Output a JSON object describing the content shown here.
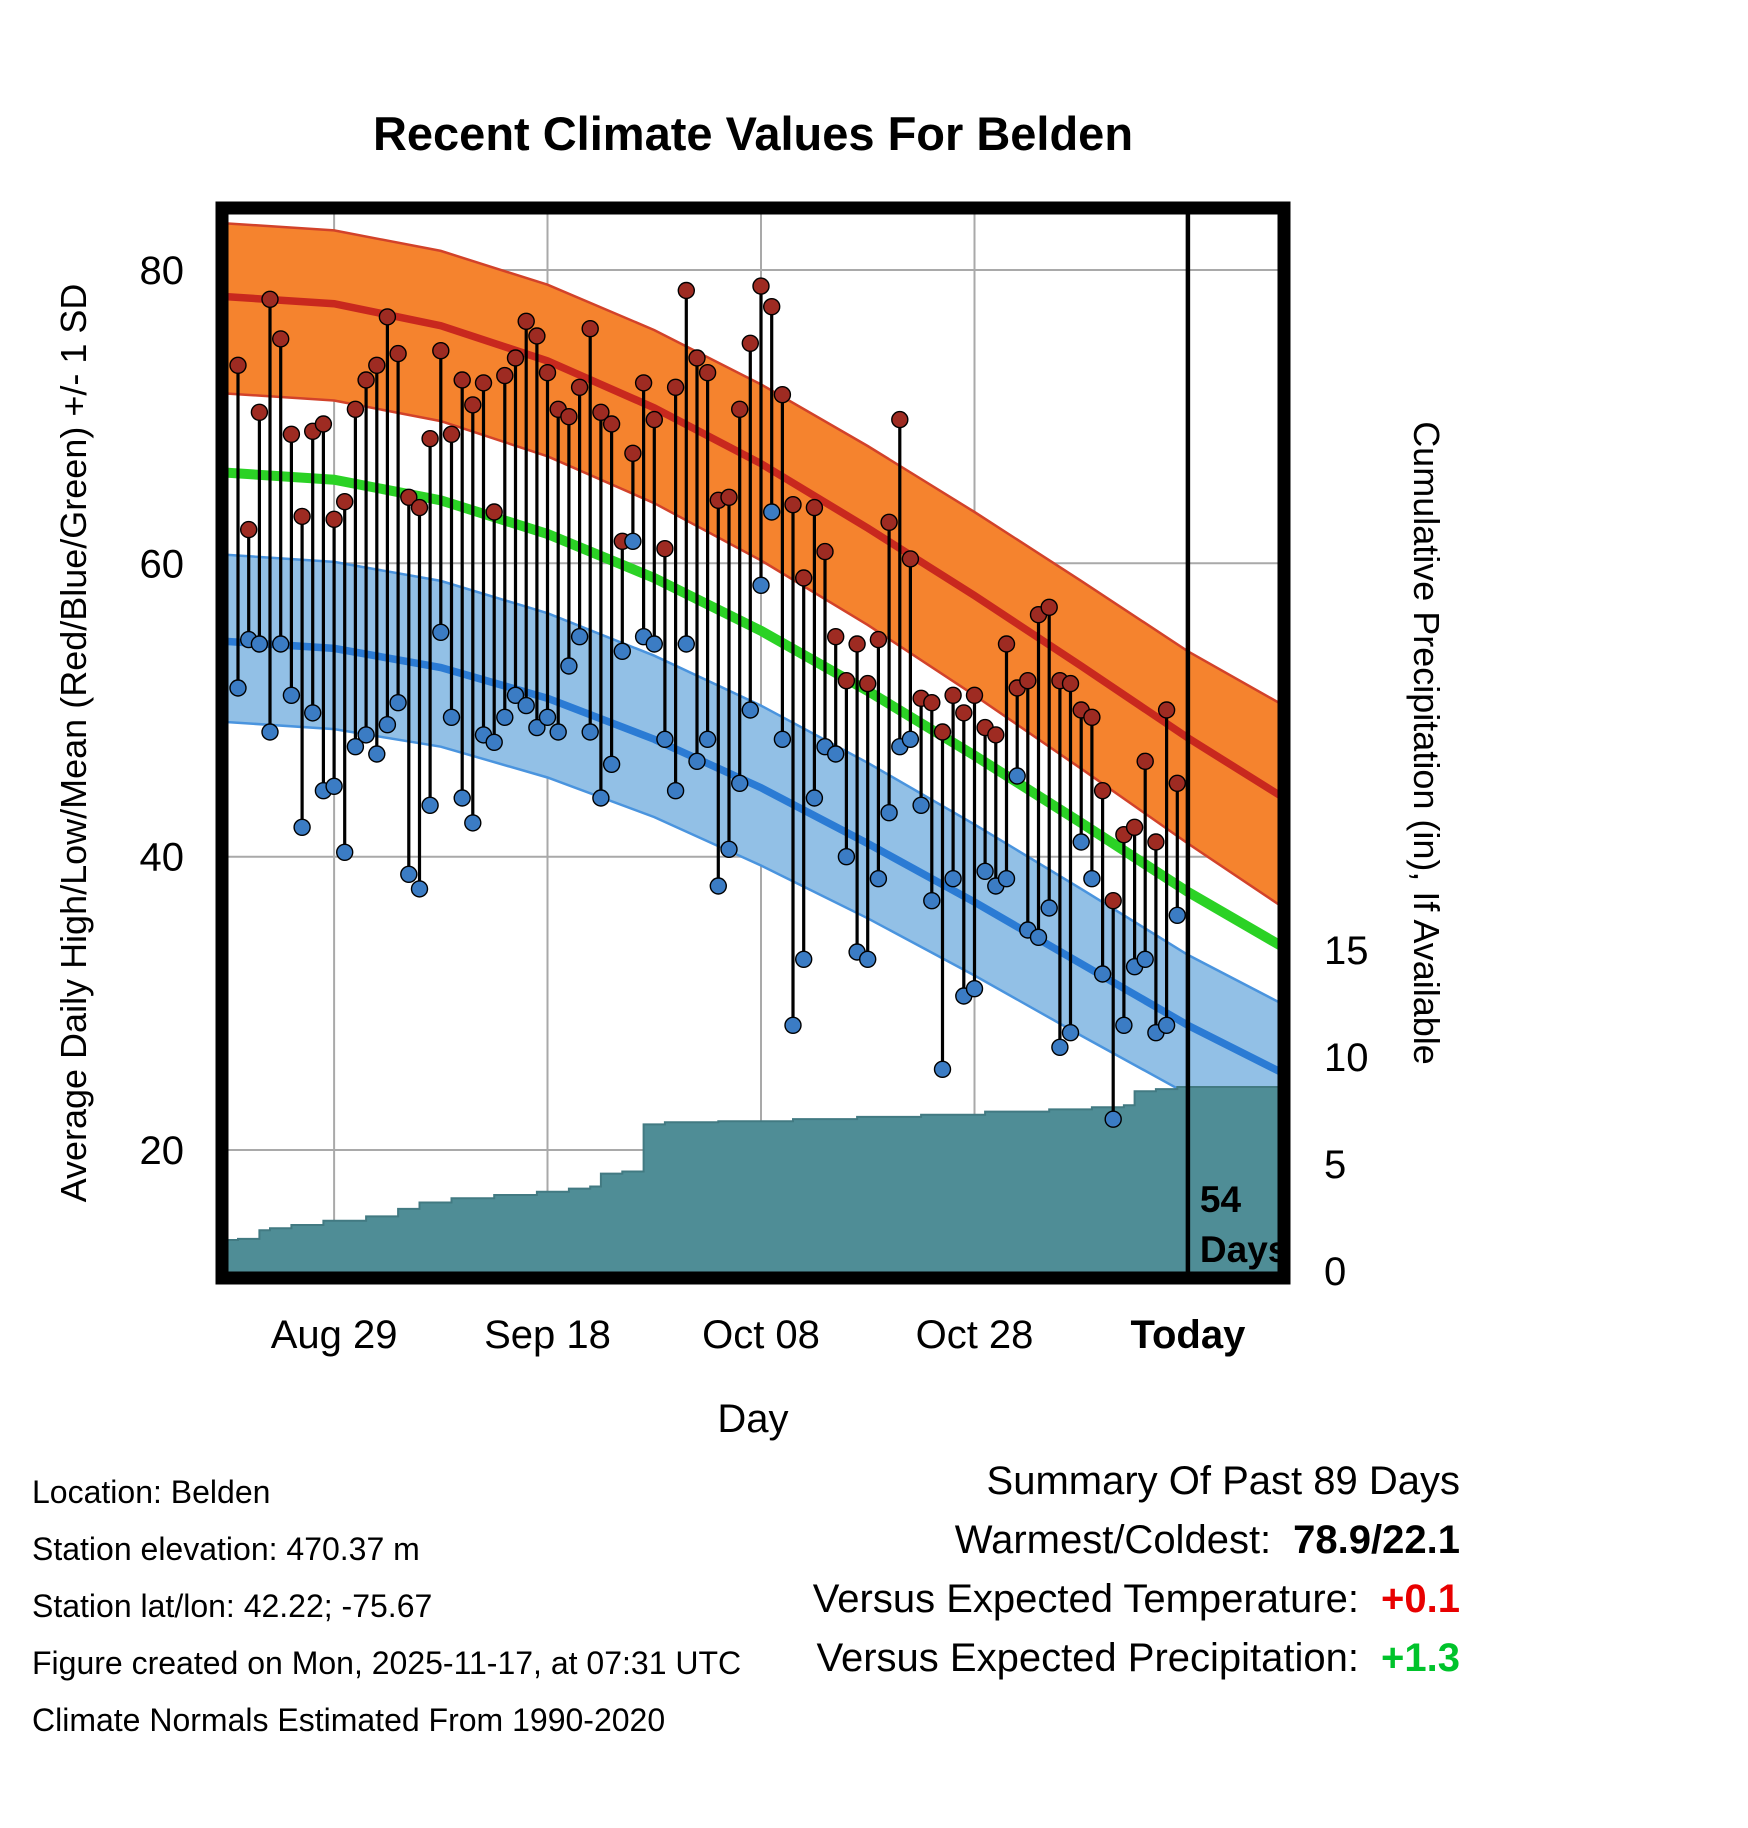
{
  "title": "Recent Climate Values For Belden",
  "x_axis": {
    "label": "Day",
    "ticks": [
      {
        "day": 9,
        "label": "Aug 29",
        "bold": false
      },
      {
        "day": 29,
        "label": "Sep 18",
        "bold": false
      },
      {
        "day": 49,
        "label": "Oct 08",
        "bold": false
      },
      {
        "day": 69,
        "label": "Oct 28",
        "bold": false
      },
      {
        "day": 89,
        "label": "Today",
        "bold": true
      }
    ]
  },
  "y_left": {
    "label": "Average Daily High/Low/Mean (Red/Blue/Green) +/- 1 SD",
    "ticks": [
      20,
      40,
      60,
      80
    ]
  },
  "y_right": {
    "label": "Cumulative Precipitation (in), If Available",
    "ticks": [
      0,
      5,
      10,
      15
    ]
  },
  "today_marker": {
    "day": 89,
    "label_line1": "54",
    "label_line2": "Days"
  },
  "footer": {
    "lines": [
      "Location: Belden",
      "Station elevation: 470.37 m",
      "Station lat/lon: 42.22; -75.67",
      "Figure created on Mon, 2025-11-17, at 07:31 UTC",
      "Climate Normals Estimated From 1990-2020"
    ]
  },
  "summary": {
    "title": "Summary Of Past 89 Days",
    "rows": [
      {
        "label": "Warmest/Coldest:",
        "value": "78.9/22.1",
        "value_color": "#000000"
      },
      {
        "label": "Versus Expected Temperature:",
        "value": "+0.1",
        "value_color": "#E80000"
      },
      {
        "label": "Versus Expected Precipitation:",
        "value": "+1.3",
        "value_color": "#00C32B"
      }
    ]
  },
  "colors": {
    "high_band": "#F5832E",
    "high_edge": "#D2422A",
    "high_line": "#C8281E",
    "high_dot": "#9E2B22",
    "low_band": "#92C0E6",
    "low_edge": "#4A94DE",
    "low_line": "#2B7BD4",
    "low_dot": "#3B7CC4",
    "mean_line": "#2BD225",
    "precip": "#4F8D96",
    "precip_edge": "#427A82",
    "grid": "#A9A9A9",
    "frame": "#000000"
  },
  "chart_data": {
    "type": "composite",
    "title": "Recent Climate Values For Belden",
    "xlabel": "Day",
    "ylabel_left": "Average Daily High/Low/Mean (Red/Blue/Green) +/- 1 SD",
    "ylabel_right": "Cumulative Precipitation (in), If Available",
    "temp_axis_ticks": [
      20,
      40,
      60,
      80
    ],
    "precip_axis_ticks": [
      0,
      5,
      10,
      15
    ],
    "x_domain_days": [
      -1.5,
      98
    ],
    "normals": {
      "days": [
        -1.5,
        9,
        19,
        29,
        39,
        49,
        59,
        69,
        79,
        89,
        98
      ],
      "high_upper": [
        83.2,
        82.7,
        81.3,
        79.0,
        75.9,
        72.2,
        68.0,
        63.5,
        58.8,
        54.0,
        50.3
      ],
      "high_mean": [
        78.2,
        77.7,
        76.2,
        73.8,
        70.6,
        66.8,
        62.4,
        57.8,
        53.0,
        48.1,
        44.0
      ],
      "high_lower": [
        71.6,
        71.1,
        69.7,
        67.3,
        64.1,
        60.2,
        55.8,
        51.0,
        46.0,
        40.9,
        36.5
      ],
      "mean": [
        66.2,
        65.7,
        64.3,
        62.0,
        59.0,
        55.4,
        51.3,
        46.9,
        42.3,
        37.6,
        33.8
      ],
      "low_upper": [
        60.6,
        60.1,
        58.8,
        56.6,
        53.7,
        50.3,
        46.4,
        42.2,
        37.8,
        33.3,
        29.9
      ],
      "low_mean": [
        54.7,
        54.2,
        52.9,
        50.8,
        48.0,
        44.7,
        40.9,
        36.9,
        32.7,
        28.5,
        25.2
      ],
      "low_lower": [
        49.2,
        48.7,
        47.5,
        45.4,
        42.7,
        39.4,
        35.8,
        31.9,
        27.8,
        23.8,
        20.8
      ]
    },
    "daily": {
      "start_day": 0,
      "highs": [
        73.5,
        62.3,
        70.3,
        78.0,
        75.3,
        68.8,
        63.2,
        69.0,
        69.5,
        63.0,
        64.2,
        70.5,
        72.5,
        73.5,
        76.8,
        74.3,
        64.5,
        63.8,
        68.5,
        74.5,
        68.8,
        72.5,
        70.8,
        72.3,
        63.5,
        72.8,
        74.0,
        76.5,
        75.5,
        73.0,
        70.5,
        70.0,
        72.0,
        76.0,
        70.3,
        69.5,
        61.5,
        67.5,
        72.3,
        69.8,
        61.0,
        72.0,
        78.6,
        74.0,
        73.0,
        64.3,
        64.5,
        70.5,
        75.0,
        78.9,
        77.5,
        71.5,
        64.0,
        59.0,
        63.8,
        60.8,
        55.0,
        52.0,
        54.5,
        51.8,
        54.8,
        62.8,
        69.8,
        60.3,
        50.8,
        50.5,
        48.5,
        51.0,
        49.8,
        51.0,
        48.8,
        48.3,
        54.5,
        51.5,
        52.0,
        56.5,
        57.0,
        52.0,
        51.8,
        50.0,
        49.5,
        44.5,
        37.0,
        41.5,
        42.0,
        46.5,
        41.0,
        50.0,
        45.0
      ],
      "lows": [
        51.5,
        54.8,
        54.5,
        48.5,
        54.5,
        51.0,
        42.0,
        49.8,
        44.5,
        44.8,
        40.3,
        47.5,
        48.3,
        47.0,
        49.0,
        50.5,
        38.8,
        37.8,
        43.5,
        55.3,
        49.5,
        44.0,
        42.3,
        48.3,
        47.8,
        49.5,
        51.0,
        50.3,
        48.8,
        49.5,
        48.5,
        53.0,
        55.0,
        48.5,
        44.0,
        46.3,
        54.0,
        61.5,
        55.0,
        54.5,
        48.0,
        44.5,
        54.5,
        46.5,
        48.0,
        38.0,
        40.5,
        45.0,
        50.0,
        58.5,
        63.5,
        48.0,
        28.5,
        33.0,
        44.0,
        47.5,
        47.0,
        40.0,
        33.5,
        33.0,
        38.5,
        43.0,
        47.5,
        48.0,
        43.5,
        37.0,
        25.5,
        38.5,
        30.5,
        31.0,
        39.0,
        38.0,
        38.5,
        45.5,
        35.0,
        34.5,
        36.5,
        27.0,
        28.0,
        41.0,
        38.5,
        32.0,
        22.1,
        28.5,
        32.5,
        33.0,
        28.0,
        28.5,
        36.0
      ]
    },
    "precip": {
      "steps": [
        [
          -1.5,
          1.45
        ],
        [
          0,
          1.5
        ],
        [
          2,
          1.9
        ],
        [
          3,
          2.0
        ],
        [
          5,
          2.15
        ],
        [
          8,
          2.35
        ],
        [
          12,
          2.55
        ],
        [
          15,
          2.9
        ],
        [
          17,
          3.2
        ],
        [
          20,
          3.4
        ],
        [
          24,
          3.55
        ],
        [
          28,
          3.7
        ],
        [
          31,
          3.85
        ],
        [
          33,
          3.95
        ],
        [
          34,
          4.55
        ],
        [
          36,
          4.65
        ],
        [
          38,
          6.85
        ],
        [
          40,
          6.95
        ],
        [
          45,
          7.0
        ],
        [
          52,
          7.1
        ],
        [
          58,
          7.2
        ],
        [
          64,
          7.3
        ],
        [
          70,
          7.45
        ],
        [
          76,
          7.55
        ],
        [
          80,
          7.65
        ],
        [
          83,
          7.75
        ],
        [
          84,
          8.4
        ],
        [
          86,
          8.5
        ],
        [
          88,
          8.6
        ]
      ],
      "final_total_in": 8.6
    }
  }
}
